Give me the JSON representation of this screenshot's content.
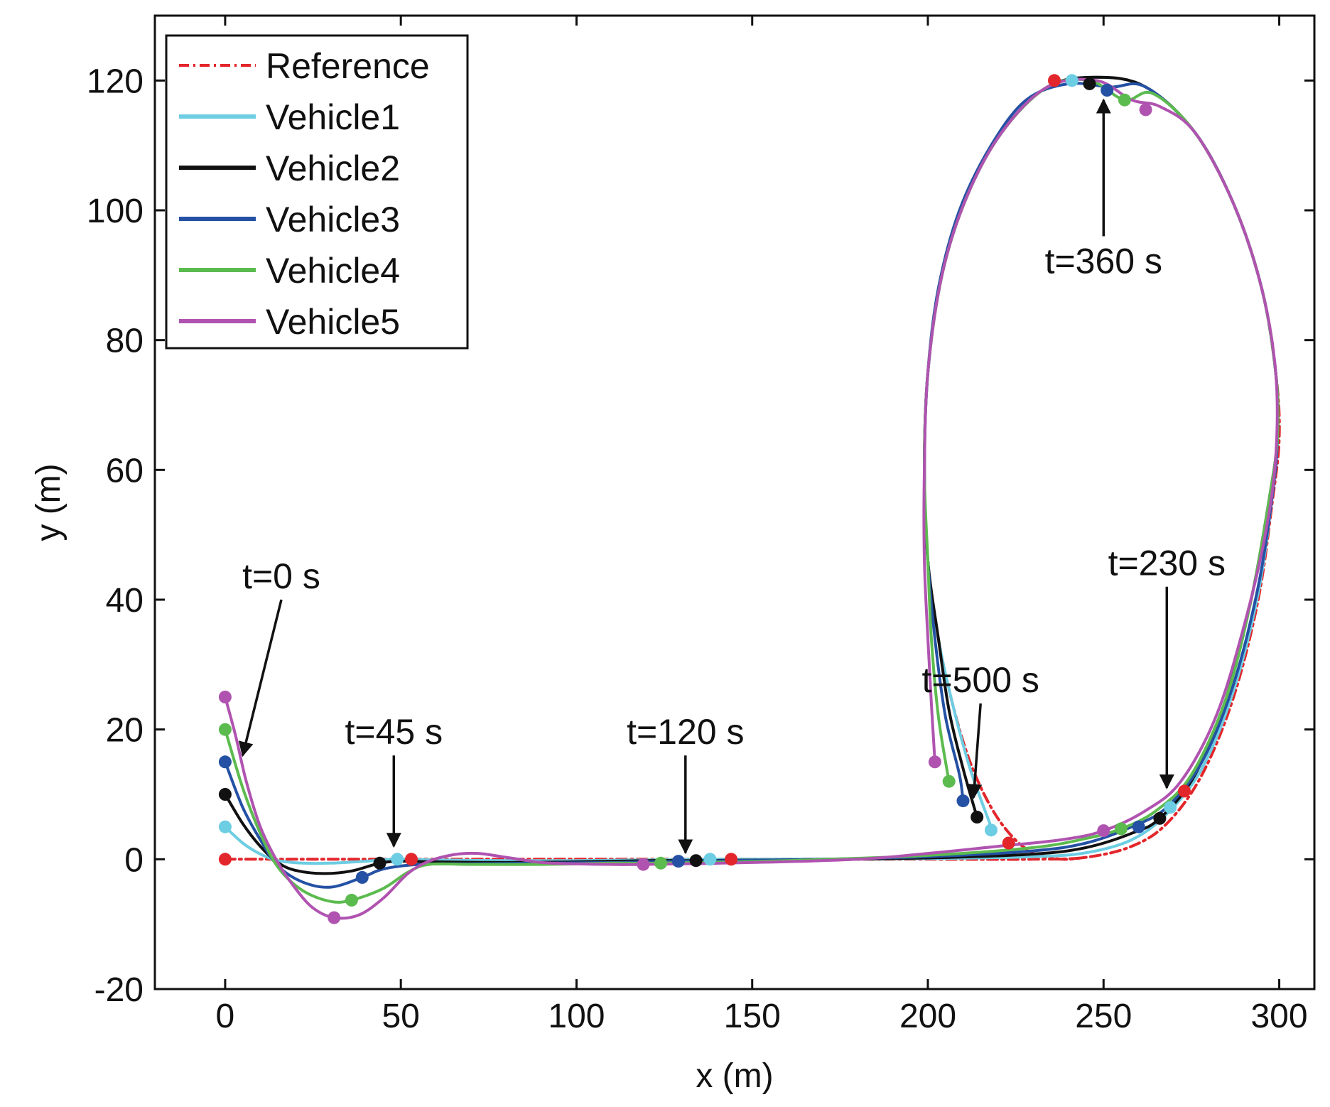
{
  "chart_data": {
    "type": "line",
    "title": "",
    "xlabel": "x (m)",
    "ylabel": "y (m)",
    "xlim": [
      -20,
      310
    ],
    "ylim": [
      -20,
      130
    ],
    "xticks": [
      0,
      50,
      100,
      150,
      200,
      250,
      300
    ],
    "yticks": [
      -20,
      0,
      20,
      40,
      60,
      80,
      100,
      120
    ],
    "xtick_labels": [
      "0",
      "50",
      "100",
      "150",
      "200",
      "250",
      "300"
    ],
    "ytick_labels": [
      "-20",
      "0",
      "20",
      "40",
      "60",
      "80",
      "100",
      "120"
    ],
    "grid": false,
    "legend_position": "top-left",
    "series": [
      {
        "name": "Reference",
        "color": "#e3262b",
        "style": "dashdot",
        "points": [
          [
            0,
            0
          ],
          [
            50,
            0
          ],
          [
            100,
            0
          ],
          [
            150,
            0
          ],
          [
            200,
            0
          ],
          [
            230,
            0
          ],
          [
            245,
            0.3
          ],
          [
            258,
            2
          ],
          [
            268,
            5.5
          ],
          [
            278,
            13
          ],
          [
            287,
            25
          ],
          [
            294,
            40
          ],
          [
            298,
            55
          ],
          [
            300,
            65
          ],
          [
            299,
            75
          ],
          [
            295,
            88
          ],
          [
            287,
            101
          ],
          [
            276,
            112
          ],
          [
            262,
            119
          ],
          [
            248,
            120.5
          ],
          [
            234,
            119
          ],
          [
            221,
            112
          ],
          [
            211,
            102
          ],
          [
            204,
            90
          ],
          [
            200,
            75
          ],
          [
            199,
            60
          ],
          [
            200,
            46
          ],
          [
            203,
            34
          ],
          [
            207,
            24
          ],
          [
            212,
            15
          ],
          [
            218,
            8
          ],
          [
            224,
            3.5
          ],
          [
            230,
            1
          ],
          [
            238,
            0
          ],
          [
            245,
            0.3
          ]
        ],
        "markers": [
          [
            0,
            0
          ],
          [
            53,
            0
          ],
          [
            144,
            0
          ],
          [
            236,
            120
          ],
          [
            273,
            10.5
          ],
          [
            223,
            2.5
          ]
        ]
      },
      {
        "name": "Vehicle1",
        "color": "#6dcde2",
        "style": "solid",
        "points": [
          [
            0,
            5
          ],
          [
            5,
            2.5
          ],
          [
            10,
            0.8
          ],
          [
            15,
            -0.2
          ],
          [
            22,
            -0.6
          ],
          [
            30,
            -0.6
          ],
          [
            40,
            -0.3
          ],
          [
            48,
            0
          ],
          [
            60,
            -0.1
          ],
          [
            80,
            -0.2
          ],
          [
            100,
            -0.2
          ],
          [
            120,
            -0.1
          ],
          [
            138,
            0
          ],
          [
            160,
            0
          ],
          [
            200,
            0.1
          ],
          [
            230,
            0.4
          ],
          [
            245,
            1
          ],
          [
            258,
            3
          ],
          [
            268,
            7
          ],
          [
            278,
            14
          ],
          [
            287,
            26
          ],
          [
            294,
            41
          ],
          [
            298,
            56
          ],
          [
            299.5,
            65
          ],
          [
            299,
            75
          ],
          [
            295,
            88
          ],
          [
            287,
            101
          ],
          [
            276,
            112
          ],
          [
            262,
            119
          ],
          [
            248,
            120.5
          ],
          [
            234,
            119
          ],
          [
            221,
            112
          ],
          [
            211,
            102
          ],
          [
            204,
            90
          ],
          [
            200,
            75
          ],
          [
            199,
            60
          ],
          [
            200,
            46
          ],
          [
            203,
            34
          ],
          [
            207,
            24
          ],
          [
            212,
            14
          ],
          [
            218,
            5
          ]
        ],
        "markers": [
          [
            0,
            5
          ],
          [
            49,
            0
          ],
          [
            138,
            0
          ],
          [
            241,
            120
          ],
          [
            269,
            8
          ],
          [
            218,
            4.5
          ]
        ]
      },
      {
        "name": "Vehicle2",
        "color": "#111111",
        "style": "solid",
        "points": [
          [
            0,
            10
          ],
          [
            5,
            5.5
          ],
          [
            10,
            2
          ],
          [
            15,
            -0.5
          ],
          [
            20,
            -1.7
          ],
          [
            28,
            -2.2
          ],
          [
            36,
            -1.8
          ],
          [
            44,
            -0.6
          ],
          [
            50,
            -0.3
          ],
          [
            60,
            -0.4
          ],
          [
            80,
            -0.5
          ],
          [
            100,
            -0.4
          ],
          [
            120,
            -0.2
          ],
          [
            134,
            -0.2
          ],
          [
            160,
            -0.1
          ],
          [
            200,
            0.2
          ],
          [
            230,
            0.8
          ],
          [
            245,
            1.8
          ],
          [
            258,
            4
          ],
          [
            266,
            6.3
          ],
          [
            276,
            13
          ],
          [
            285,
            25
          ],
          [
            292,
            40
          ],
          [
            297,
            55
          ],
          [
            299.5,
            65
          ],
          [
            299,
            75
          ],
          [
            295,
            88
          ],
          [
            287,
            101
          ],
          [
            276,
            112
          ],
          [
            262,
            119
          ],
          [
            248,
            120.5
          ],
          [
            234,
            119
          ],
          [
            221,
            112
          ],
          [
            211,
            102
          ],
          [
            204,
            90
          ],
          [
            200,
            75
          ],
          [
            199,
            60
          ],
          [
            200,
            46
          ],
          [
            203,
            34
          ],
          [
            206,
            23
          ],
          [
            210,
            14
          ],
          [
            214,
            6.5
          ]
        ],
        "markers": [
          [
            0,
            10
          ],
          [
            44,
            -0.6
          ],
          [
            134,
            -0.2
          ],
          [
            246,
            119.5
          ],
          [
            266,
            6.3
          ],
          [
            214,
            6.5
          ]
        ]
      },
      {
        "name": "Vehicle3",
        "color": "#2451a4",
        "style": "solid",
        "points": [
          [
            0,
            15
          ],
          [
            5,
            8
          ],
          [
            10,
            3
          ],
          [
            15,
            -1
          ],
          [
            22,
            -3.5
          ],
          [
            30,
            -4.3
          ],
          [
            39,
            -2.8
          ],
          [
            45,
            -1.5
          ],
          [
            55,
            -0.8
          ],
          [
            70,
            -0.7
          ],
          [
            90,
            -0.6
          ],
          [
            110,
            -0.5
          ],
          [
            129,
            -0.3
          ],
          [
            160,
            -0.1
          ],
          [
            200,
            0.4
          ],
          [
            230,
            1.3
          ],
          [
            245,
            2.5
          ],
          [
            258,
            5
          ],
          [
            268,
            8
          ],
          [
            278,
            15
          ],
          [
            287,
            27
          ],
          [
            294,
            42
          ],
          [
            298,
            56
          ],
          [
            299.5,
            65
          ],
          [
            299,
            75
          ],
          [
            295,
            88
          ],
          [
            287,
            101
          ],
          [
            276,
            112
          ],
          [
            262,
            119
          ],
          [
            252,
            119
          ],
          [
            240,
            119.5
          ],
          [
            228,
            117
          ],
          [
            218,
            110
          ],
          [
            209,
            100
          ],
          [
            203,
            88
          ],
          [
            200,
            75
          ],
          [
            199,
            60
          ],
          [
            200,
            46
          ],
          [
            202,
            34
          ],
          [
            205,
            22
          ],
          [
            209,
            13
          ],
          [
            210,
            9
          ]
        ],
        "markers": [
          [
            0,
            15
          ],
          [
            39,
            -2.8
          ],
          [
            129,
            -0.3
          ],
          [
            251,
            118.5
          ],
          [
            260,
            5
          ],
          [
            210,
            9
          ]
        ]
      },
      {
        "name": "Vehicle4",
        "color": "#5cbb4f",
        "style": "solid",
        "points": [
          [
            0,
            20
          ],
          [
            5,
            11
          ],
          [
            10,
            4
          ],
          [
            15,
            -1.2
          ],
          [
            22,
            -4.8
          ],
          [
            30,
            -6.5
          ],
          [
            36,
            -6.3
          ],
          [
            45,
            -4.5
          ],
          [
            52,
            -2
          ],
          [
            58,
            -0.8
          ],
          [
            70,
            -0.8
          ],
          [
            90,
            -0.8
          ],
          [
            110,
            -0.6
          ],
          [
            124,
            -0.6
          ],
          [
            160,
            -0.2
          ],
          [
            200,
            0.6
          ],
          [
            230,
            1.8
          ],
          [
            245,
            3.2
          ],
          [
            255,
            4.7
          ],
          [
            265,
            7.5
          ],
          [
            275,
            13
          ],
          [
            285,
            25
          ],
          [
            292,
            40
          ],
          [
            297,
            55
          ],
          [
            299.5,
            65
          ],
          [
            299,
            75
          ],
          [
            295,
            88
          ],
          [
            287,
            101
          ],
          [
            276,
            112
          ],
          [
            264,
            118
          ],
          [
            256,
            117
          ],
          [
            246,
            120
          ],
          [
            234,
            119
          ],
          [
            221,
            112
          ],
          [
            211,
            102
          ],
          [
            204,
            90
          ],
          [
            200,
            75
          ],
          [
            199,
            60
          ],
          [
            200,
            46
          ],
          [
            201,
            34
          ],
          [
            203,
            22
          ],
          [
            206,
            12
          ]
        ],
        "markers": [
          [
            0,
            20
          ],
          [
            36,
            -6.3
          ],
          [
            124,
            -0.6
          ],
          [
            256,
            117
          ],
          [
            255,
            4.7
          ],
          [
            206,
            12
          ]
        ]
      },
      {
        "name": "Vehicle5",
        "color": "#b053b0",
        "style": "solid",
        "points": [
          [
            0,
            25
          ],
          [
            3,
            19
          ],
          [
            6,
            12
          ],
          [
            10,
            5
          ],
          [
            15,
            -0.5
          ],
          [
            20,
            -4.5
          ],
          [
            25,
            -7.5
          ],
          [
            31,
            -9
          ],
          [
            38,
            -8.6
          ],
          [
            45,
            -6
          ],
          [
            52,
            -2.2
          ],
          [
            58,
            -0.3
          ],
          [
            65,
            0.7
          ],
          [
            72,
            0.9
          ],
          [
            80,
            0.3
          ],
          [
            90,
            -0.5
          ],
          [
            100,
            -0.7
          ],
          [
            110,
            -0.8
          ],
          [
            119,
            -0.8
          ],
          [
            150,
            -0.5
          ],
          [
            180,
            0
          ],
          [
            200,
            0.9
          ],
          [
            220,
            2
          ],
          [
            238,
            3
          ],
          [
            250,
            4.4
          ],
          [
            262,
            7.5
          ],
          [
            272,
            12
          ],
          [
            282,
            22
          ],
          [
            290,
            36
          ],
          [
            296,
            50
          ],
          [
            299,
            62
          ],
          [
            299,
            75
          ],
          [
            295,
            88
          ],
          [
            287,
            101
          ],
          [
            276,
            112
          ],
          [
            266,
            116
          ],
          [
            258,
            117
          ],
          [
            248,
            120
          ],
          [
            234,
            119
          ],
          [
            221,
            112
          ],
          [
            211,
            102
          ],
          [
            204,
            90
          ],
          [
            200,
            75
          ],
          [
            199,
            60
          ],
          [
            199,
            46
          ],
          [
            200,
            34
          ],
          [
            201,
            24
          ],
          [
            202,
            15
          ]
        ],
        "markers": [
          [
            0,
            25
          ],
          [
            31,
            -9
          ],
          [
            119,
            -0.8
          ],
          [
            262,
            115.5
          ],
          [
            250,
            4.4
          ],
          [
            202,
            15
          ]
        ]
      }
    ],
    "annotations": [
      {
        "text": "t=0 s",
        "arrow_tip": [
          5,
          16
        ],
        "arrow_tail": [
          16,
          40
        ]
      },
      {
        "text": "t=45 s",
        "arrow_tip": [
          48,
          2
        ],
        "arrow_tail": [
          48,
          16
        ]
      },
      {
        "text": "t=120 s",
        "arrow_tip": [
          131,
          1
        ],
        "arrow_tail": [
          131,
          16
        ]
      },
      {
        "text": "t=500 s",
        "arrow_tip": [
          213,
          9.5
        ],
        "arrow_tail": [
          215,
          24
        ]
      },
      {
        "text": "t=230 s",
        "arrow_tip": [
          268,
          11
        ],
        "arrow_tail": [
          268,
          42
        ]
      },
      {
        "text": "t=360 s",
        "arrow_tip": [
          250,
          117
        ],
        "arrow_tail": [
          250,
          96
        ]
      }
    ]
  }
}
